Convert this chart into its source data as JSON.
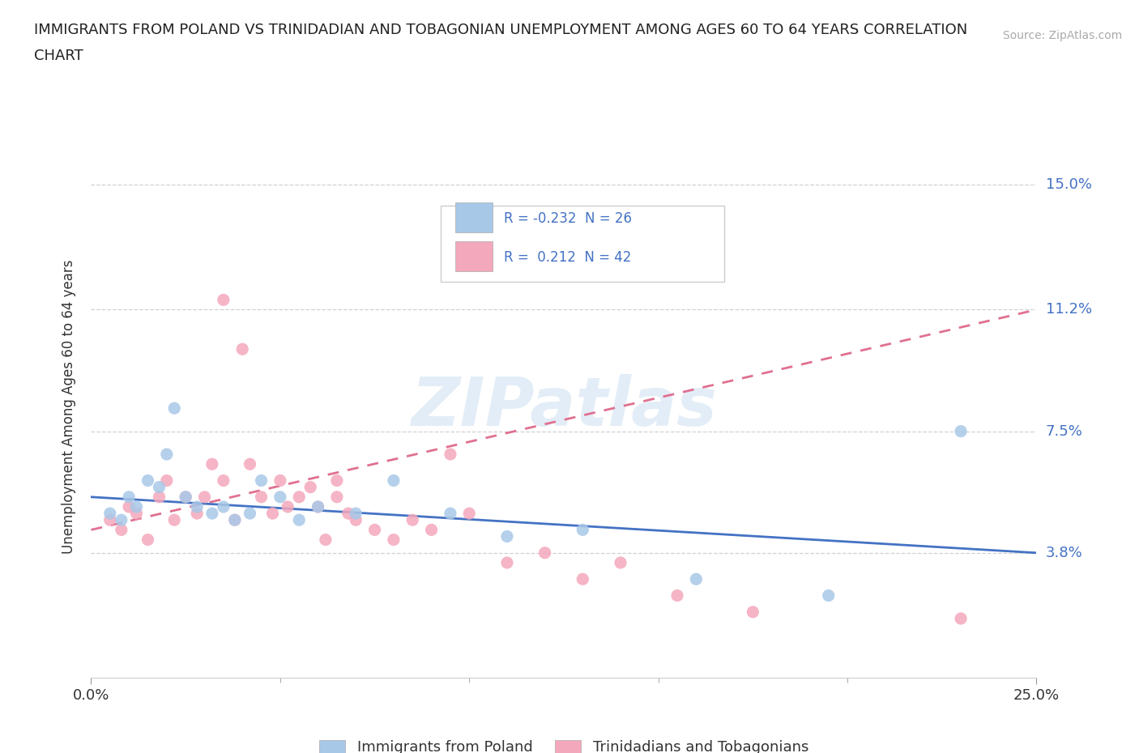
{
  "title_line1": "IMMIGRANTS FROM POLAND VS TRINIDADIAN AND TOBAGONIAN UNEMPLOYMENT AMONG AGES 60 TO 64 YEARS CORRELATION",
  "title_line2": "CHART",
  "source": "Source: ZipAtlas.com",
  "ylabel": "Unemployment Among Ages 60 to 64 years",
  "xlim": [
    0.0,
    0.25
  ],
  "ylim": [
    0.0,
    0.165
  ],
  "yticks": [
    0.038,
    0.075,
    0.112,
    0.15
  ],
  "ytick_labels": [
    "3.8%",
    "7.5%",
    "11.2%",
    "15.0%"
  ],
  "xticks": [
    0.0,
    0.25
  ],
  "xtick_labels": [
    "0.0%",
    "25.0%"
  ],
  "poland_color": "#a8c8e8",
  "trinidad_color": "#f4a8bc",
  "poland_line_color": "#4472c4",
  "trinidad_line_color": "#e07090",
  "R_poland": -0.232,
  "N_poland": 26,
  "R_trinidad": 0.212,
  "N_trinidad": 42,
  "legend_label_poland": "Immigrants from Poland",
  "legend_label_trinidad": "Trinidadians and Tobagonians",
  "poland_x": [
    0.005,
    0.008,
    0.01,
    0.012,
    0.015,
    0.018,
    0.02,
    0.022,
    0.025,
    0.028,
    0.032,
    0.035,
    0.038,
    0.042,
    0.045,
    0.05,
    0.055,
    0.06,
    0.07,
    0.08,
    0.095,
    0.11,
    0.13,
    0.16,
    0.195,
    0.23
  ],
  "poland_y": [
    0.05,
    0.048,
    0.055,
    0.052,
    0.06,
    0.058,
    0.068,
    0.082,
    0.055,
    0.052,
    0.05,
    0.052,
    0.048,
    0.05,
    0.06,
    0.055,
    0.048,
    0.052,
    0.05,
    0.06,
    0.05,
    0.043,
    0.045,
    0.03,
    0.025,
    0.075
  ],
  "trinidad_x": [
    0.005,
    0.008,
    0.01,
    0.012,
    0.015,
    0.018,
    0.02,
    0.022,
    0.025,
    0.028,
    0.03,
    0.032,
    0.035,
    0.035,
    0.038,
    0.04,
    0.042,
    0.045,
    0.048,
    0.05,
    0.052,
    0.055,
    0.058,
    0.06,
    0.062,
    0.065,
    0.065,
    0.068,
    0.07,
    0.075,
    0.08,
    0.085,
    0.09,
    0.095,
    0.1,
    0.11,
    0.12,
    0.13,
    0.14,
    0.155,
    0.175,
    0.23
  ],
  "trinidad_y": [
    0.048,
    0.045,
    0.052,
    0.05,
    0.042,
    0.055,
    0.06,
    0.048,
    0.055,
    0.05,
    0.055,
    0.065,
    0.115,
    0.06,
    0.048,
    0.1,
    0.065,
    0.055,
    0.05,
    0.06,
    0.052,
    0.055,
    0.058,
    0.052,
    0.042,
    0.06,
    0.055,
    0.05,
    0.048,
    0.045,
    0.042,
    0.048,
    0.045,
    0.068,
    0.05,
    0.035,
    0.038,
    0.03,
    0.035,
    0.025,
    0.02,
    0.018
  ],
  "watermark": "ZIPatlas",
  "background_color": "#ffffff",
  "grid_color": "#cccccc"
}
